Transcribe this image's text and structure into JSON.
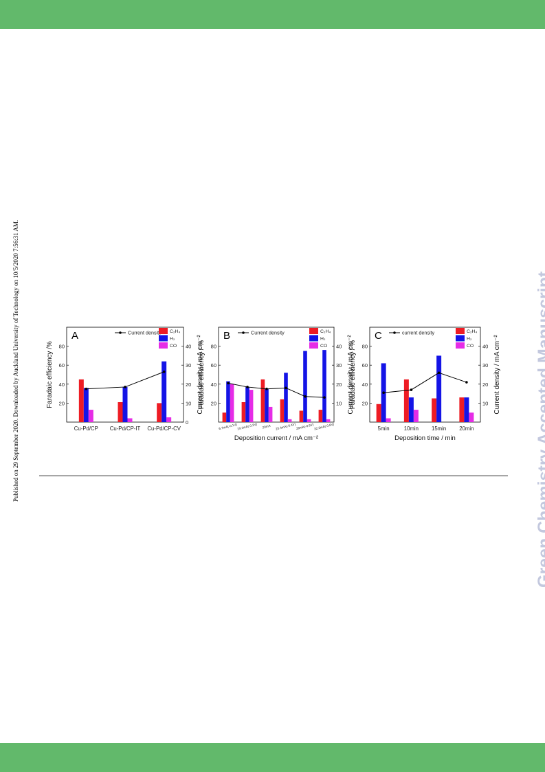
{
  "header": {
    "band_color": "#62b96b"
  },
  "footer": {
    "band_color": "#62b96b"
  },
  "side_note": "Published on 29 September 2020. Downloaded by Auckland University of Technology on 10/5/2020 7:56:31 AM.",
  "watermark": "Green Chemistry Accepted Manuscript",
  "colors": {
    "c2h4": "#ee1c24",
    "h2": "#1414e6",
    "co": "#e62ce6",
    "current_density": "#000000",
    "band": "#62b96b",
    "watermark": "#c3c8de"
  },
  "chart_data": [
    {
      "type": "bar",
      "panel": "A",
      "categories": [
        "Cu-Pd/CP",
        "Cu-Pd/CP-IT",
        "Cu-Pd/CP-CV"
      ],
      "series": [
        {
          "name": "C₂H₄",
          "values": [
            45,
            21,
            20
          ]
        },
        {
          "name": "H₂",
          "values": [
            36,
            37,
            64
          ]
        },
        {
          "name": "CO",
          "values": [
            13,
            4,
            5
          ]
        }
      ],
      "line_series": {
        "name": "Current density",
        "values": [
          17.5,
          18.5,
          26.5
        ]
      },
      "xlabel": "",
      "ylabel": "Faradaic efficiency /%",
      "y2label": "Current density / mA cm⁻²",
      "ylim": [
        0,
        100
      ],
      "y2lim": [
        0,
        50
      ],
      "yticks": [
        20,
        40,
        60,
        80
      ],
      "y2ticks": [
        0,
        10,
        20,
        30,
        40
      ],
      "legend_position": "top-right"
    },
    {
      "type": "bar",
      "panel": "B",
      "categories": [
        "6.7mA(-0.1V)",
        "19.1mA(-0.2V)",
        "20mA",
        "25.4mA(-0.4V)",
        "28mA(-0.6V)",
        "32.3mA(-0.8V)"
      ],
      "series": [
        {
          "name": "C₂H₄",
          "values": [
            10,
            21,
            45,
            24,
            12,
            13
          ]
        },
        {
          "name": "H₂",
          "values": [
            43,
            37,
            35,
            52,
            75,
            76
          ]
        },
        {
          "name": "CO",
          "values": [
            40,
            34,
            16,
            3,
            3,
            3
          ]
        }
      ],
      "line_series": {
        "name": "Current density",
        "values": [
          20.5,
          18.5,
          17.5,
          18,
          13.5,
          13
        ]
      },
      "xlabel": "Deposition current / mA cm⁻²",
      "ylabel": "Faradaic efficiency / %",
      "y2label": "Current density / mA cm⁻²",
      "ylim": [
        0,
        100
      ],
      "y2lim": [
        0,
        50
      ],
      "yticks": [
        20,
        40,
        60,
        80
      ],
      "y2ticks": [
        10,
        20,
        30,
        40
      ],
      "legend_position": "top-right"
    },
    {
      "type": "bar",
      "panel": "C",
      "categories": [
        "5min",
        "10min",
        "15min",
        "20min"
      ],
      "series": [
        {
          "name": "C₂H₄",
          "values": [
            19,
            45,
            25,
            26
          ]
        },
        {
          "name": "H₂",
          "values": [
            62,
            26,
            70,
            26
          ]
        },
        {
          "name": "CO",
          "values": [
            4,
            13,
            0,
            10
          ]
        }
      ],
      "line_series": {
        "name": "current density",
        "values": [
          15.5,
          17,
          26,
          21
        ]
      },
      "xlabel": "Deposition time / min",
      "ylabel": "Faradaic efficiency / %",
      "y2label": "Current density / mA cm⁻²",
      "ylim": [
        0,
        100
      ],
      "y2lim": [
        0,
        50
      ],
      "yticks": [
        20,
        40,
        60,
        80
      ],
      "y2ticks": [
        10,
        20,
        30,
        40
      ],
      "legend_position": "top-right"
    }
  ]
}
